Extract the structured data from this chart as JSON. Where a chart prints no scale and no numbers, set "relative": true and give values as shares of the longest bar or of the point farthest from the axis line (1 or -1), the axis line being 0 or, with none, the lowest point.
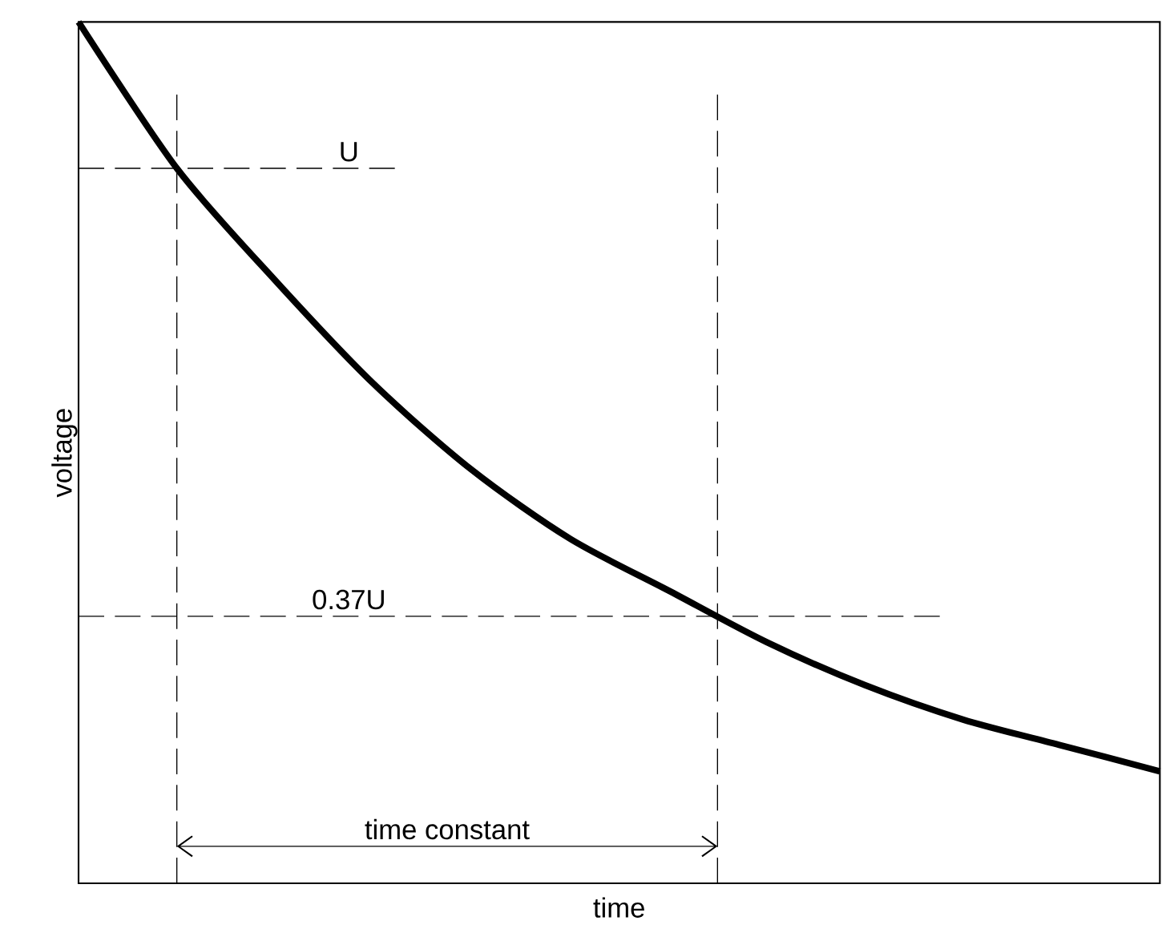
{
  "chart_data": {
    "type": "line",
    "relative": true,
    "xlabel": "time",
    "ylabel": "voltage",
    "categories": [
      null,
      null,
      null,
      null,
      null,
      null,
      null,
      null,
      null,
      null,
      null,
      null
    ],
    "series": [
      {
        "color": "#000000",
        "values": [
          1,
          0.83,
          0.7,
          0.58,
          0.48,
          0.4,
          0.34,
          0.28,
          0.23,
          0.19,
          0.16,
          0.13
        ]
      }
    ],
    "ref_lines": [
      {
        "axis": "y",
        "value": 0.83,
        "label": "U",
        "line_style": "dashed",
        "color": "#000000"
      },
      {
        "axis": "y",
        "value": 0.31,
        "label": "0.37U",
        "line_style": "dashed",
        "color": "#000000"
      }
    ],
    "annotations": [
      "time constant"
    ],
    "marker": "none",
    "line_style": "solid"
  }
}
